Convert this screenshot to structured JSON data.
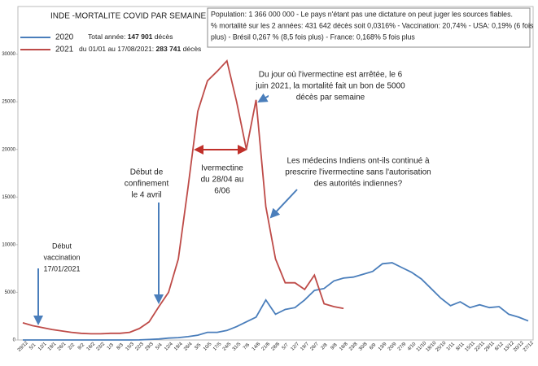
{
  "chart_data": {
    "type": "line",
    "title": "INDE -MORTALITE COVID PAR SEMAINE",
    "categories": [
      "29/12",
      "5/1",
      "12/1",
      "19/1",
      "26/1",
      "2/2",
      "9/2",
      "16/2",
      "23/2",
      "1/3",
      "8/3",
      "15/3",
      "22/3",
      "29/3",
      "5/4",
      "12/4",
      "19/4",
      "26/4",
      "3/5",
      "10/5",
      "17/5",
      "24/5",
      "31/5",
      "7/6",
      "14/6",
      "21/6",
      "28/6",
      "5/7",
      "12/7",
      "19/7",
      "26/7",
      "2/8",
      "9/8",
      "16/8",
      "23/8",
      "30/8",
      "6/9",
      "13/9",
      "20/9",
      "27/9",
      "4/10",
      "11/10",
      "18/10",
      "25/10",
      "1/11",
      "8/11",
      "15/11",
      "22/11",
      "29/11",
      "6/12",
      "13/12",
      "20/12",
      "27/12"
    ],
    "series": [
      {
        "name": "2020",
        "color": "#4a7ebb",
        "values": [
          0,
          0,
          0,
          0,
          0,
          0,
          0,
          0,
          0,
          0,
          0,
          0,
          10,
          50,
          100,
          200,
          250,
          350,
          500,
          800,
          800,
          1000,
          1400,
          1900,
          2400,
          4200,
          2700,
          3200,
          3400,
          4200,
          5200,
          5400,
          6200,
          6500,
          6600,
          6900,
          7200,
          8000,
          8100,
          7600,
          7100,
          6400,
          5400,
          4400,
          3600,
          4000,
          3400,
          3700,
          3400,
          3500,
          2700,
          2400,
          2000
        ]
      },
      {
        "name": "2021",
        "color": "#be4b48",
        "values": [
          1800,
          1500,
          1300,
          1100,
          950,
          800,
          700,
          650,
          650,
          700,
          700,
          800,
          1200,
          1900,
          3500,
          5000,
          8500,
          16000,
          24000,
          27200,
          28200,
          29300,
          25000,
          20000,
          25200,
          14000,
          8500,
          6000,
          6000,
          5300,
          6800,
          3800,
          3500,
          3300,
          null,
          null,
          null,
          null,
          null,
          null,
          null,
          null,
          null,
          null,
          null,
          null,
          null,
          null,
          null,
          null,
          null,
          null,
          null
        ]
      }
    ],
    "totals": [
      {
        "prefix": "Total année: ",
        "value": "147 901",
        "suffix": " décès"
      },
      {
        "prefix": "du 01/01 au 17/08/2021: ",
        "value": "283 741",
        "suffix": " décès"
      }
    ],
    "info": [
      "Population:  1 366 000 000 - Le pays n'étant pas une dictature on peut juger les sources fiables.",
      "% mortalité sur les 2 années:  431 642 décès soit  0,0316% - Vaccination: 20,74% - USA: 0,19% (6 fois",
      "plus) - Brésil 0,267 % (8,5 fois plus) - France: 0,168% 5 fois plus"
    ],
    "annotations": [
      {
        "lines": [
          "Début",
          "vaccination",
          "17/01/2021"
        ]
      },
      {
        "lines": [
          "Début de",
          "confinement",
          "le 4 avril"
        ]
      },
      {
        "lines": [
          "Ivermectine",
          "du 28/04 au",
          "6/06"
        ]
      },
      {
        "lines": [
          "Du jour où l'ivermectine est arrêtée, le 6",
          "juin 2021, la mortalité fait un bon de 5000",
          "décès par semaine"
        ]
      },
      {
        "lines": [
          "Les médecins Indiens ont-ils continué à",
          "prescrire l'ivermectine sans l'autorisation",
          "des autorités indiennes?"
        ]
      }
    ],
    "ylim": [
      0,
      35000
    ],
    "yticks": [
      0,
      5000,
      10000,
      15000,
      20000,
      25000,
      30000
    ],
    "grid": false
  }
}
